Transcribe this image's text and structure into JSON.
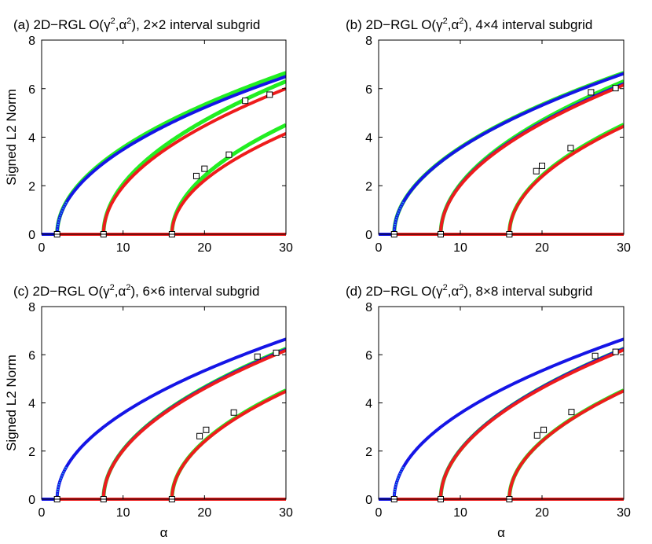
{
  "figure": {
    "ylabel": "Signed L2 Norm",
    "xlabel": "α"
  },
  "chart_data": [
    {
      "id": "a",
      "type": "line",
      "title": {
        "prefix": "(a) 2D−RGL O(",
        "g": "γ",
        "sep": ",",
        "a": "α",
        "suffix": "), 2×2 interval subgrid",
        "sup": "2"
      },
      "xlim": [
        0,
        30
      ],
      "ylim": [
        0,
        8
      ],
      "xticks": [
        0,
        10,
        20,
        30
      ],
      "yticks": [
        0,
        2,
        4,
        6,
        8
      ],
      "bifurcation_points": [
        1.9,
        7.6,
        16.0
      ],
      "series": [
        {
          "name": "green",
          "color": "#22ee22",
          "branches": [
            {
              "x0": 1.9,
              "amp": 6.65
            },
            {
              "x0": 7.6,
              "amp": 6.3
            },
            {
              "x0": 16.0,
              "amp": 4.5
            }
          ]
        },
        {
          "name": "blue",
          "color": "#1515e6",
          "branches": [
            {
              "x0": 1.9,
              "amp": 6.5
            }
          ]
        },
        {
          "name": "red",
          "color": "#ee1c1c",
          "branches": [
            {
              "x0": 7.6,
              "amp": 6.0
            },
            {
              "x0": 16.0,
              "amp": 4.15
            }
          ]
        }
      ],
      "markers": [
        {
          "x": 1.9,
          "y": 0
        },
        {
          "x": 7.6,
          "y": 0
        },
        {
          "x": 16.0,
          "y": 0
        },
        {
          "x": 25.0,
          "y": 5.5
        },
        {
          "x": 28.0,
          "y": 5.75
        },
        {
          "x": 19.0,
          "y": 2.4
        },
        {
          "x": 20.0,
          "y": 2.7
        },
        {
          "x": 23.0,
          "y": 3.28
        }
      ]
    },
    {
      "id": "b",
      "type": "line",
      "title": {
        "prefix": "(b) 2D−RGL O(",
        "g": "γ",
        "sep": ",",
        "a": "α",
        "suffix": "), 4×4 interval subgrid",
        "sup": "2"
      },
      "xlim": [
        0,
        30
      ],
      "ylim": [
        0,
        8
      ],
      "xticks": [
        0,
        10,
        20,
        30
      ],
      "yticks": [
        0,
        2,
        4,
        6,
        8
      ],
      "bifurcation_points": [
        1.9,
        7.6,
        16.0
      ],
      "series": [
        {
          "name": "green",
          "color": "#22ee22",
          "branches": [
            {
              "x0": 1.9,
              "amp": 6.65
            },
            {
              "x0": 7.6,
              "amp": 6.3
            },
            {
              "x0": 16.0,
              "amp": 4.52
            }
          ]
        },
        {
          "name": "blue",
          "color": "#1515e6",
          "branches": [
            {
              "x0": 1.9,
              "amp": 6.62
            },
            {
              "x0": 7.6,
              "amp": 6.2
            }
          ]
        },
        {
          "name": "red",
          "color": "#ee1c1c",
          "branches": [
            {
              "x0": 7.6,
              "amp": 6.15
            },
            {
              "x0": 16.0,
              "amp": 4.45
            }
          ]
        }
      ],
      "markers": [
        {
          "x": 1.9,
          "y": 0
        },
        {
          "x": 7.6,
          "y": 0
        },
        {
          "x": 16.0,
          "y": 0
        },
        {
          "x": 26.0,
          "y": 5.85
        },
        {
          "x": 29.0,
          "y": 6.02
        },
        {
          "x": 19.3,
          "y": 2.6
        },
        {
          "x": 20.0,
          "y": 2.82
        },
        {
          "x": 23.5,
          "y": 3.55
        }
      ]
    },
    {
      "id": "c",
      "type": "line",
      "title": {
        "prefix": "(c) 2D−RGL O(",
        "g": "γ",
        "sep": ",",
        "a": "α",
        "suffix": "), 6×6 interval subgrid",
        "sup": "2"
      },
      "xlim": [
        0,
        30
      ],
      "ylim": [
        0,
        8
      ],
      "xticks": [
        0,
        10,
        20,
        30
      ],
      "yticks": [
        0,
        2,
        4,
        6,
        8
      ],
      "bifurcation_points": [
        1.9,
        7.6,
        16.0
      ],
      "series": [
        {
          "name": "green",
          "color": "#22ee22",
          "branches": [
            {
              "x0": 7.6,
              "amp": 6.25
            },
            {
              "x0": 16.0,
              "amp": 4.52
            }
          ]
        },
        {
          "name": "blue",
          "color": "#1515e6",
          "branches": [
            {
              "x0": 1.9,
              "amp": 6.65
            },
            {
              "x0": 7.6,
              "amp": 6.22
            }
          ]
        },
        {
          "name": "red",
          "color": "#ee1c1c",
          "branches": [
            {
              "x0": 7.6,
              "amp": 6.18
            },
            {
              "x0": 16.0,
              "amp": 4.48
            }
          ]
        }
      ],
      "markers": [
        {
          "x": 1.9,
          "y": 0
        },
        {
          "x": 7.6,
          "y": 0
        },
        {
          "x": 16.0,
          "y": 0
        },
        {
          "x": 26.5,
          "y": 5.92
        },
        {
          "x": 28.8,
          "y": 6.08
        },
        {
          "x": 19.4,
          "y": 2.62
        },
        {
          "x": 20.2,
          "y": 2.88
        },
        {
          "x": 23.6,
          "y": 3.6
        }
      ]
    },
    {
      "id": "d",
      "type": "line",
      "title": {
        "prefix": "(d) 2D−RGL O(",
        "g": "γ",
        "sep": ",",
        "a": "α",
        "suffix": "), 8×8 interval subgrid",
        "sup": "2"
      },
      "xlim": [
        0,
        30
      ],
      "ylim": [
        0,
        8
      ],
      "xticks": [
        0,
        10,
        20,
        30
      ],
      "yticks": [
        0,
        2,
        4,
        6,
        8
      ],
      "bifurcation_points": [
        1.9,
        7.6,
        16.0
      ],
      "series": [
        {
          "name": "green",
          "color": "#22ee22",
          "branches": [
            {
              "x0": 7.6,
              "amp": 6.25
            },
            {
              "x0": 16.0,
              "amp": 4.52
            }
          ]
        },
        {
          "name": "blue",
          "color": "#1515e6",
          "branches": [
            {
              "x0": 1.9,
              "amp": 6.65
            },
            {
              "x0": 7.6,
              "amp": 6.25
            }
          ]
        },
        {
          "name": "red",
          "color": "#ee1c1c",
          "branches": [
            {
              "x0": 7.6,
              "amp": 6.2
            },
            {
              "x0": 16.0,
              "amp": 4.5
            }
          ]
        }
      ],
      "markers": [
        {
          "x": 1.9,
          "y": 0
        },
        {
          "x": 7.6,
          "y": 0
        },
        {
          "x": 16.0,
          "y": 0
        },
        {
          "x": 26.5,
          "y": 5.95
        },
        {
          "x": 29.0,
          "y": 6.12
        },
        {
          "x": 19.4,
          "y": 2.65
        },
        {
          "x": 20.2,
          "y": 2.88
        },
        {
          "x": 23.6,
          "y": 3.62
        }
      ]
    }
  ]
}
